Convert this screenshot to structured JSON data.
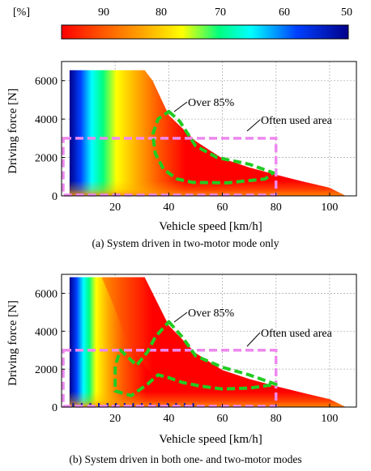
{
  "colorbar": {
    "unit_label": "[%]",
    "ticks": [
      "90",
      "80",
      "70",
      "60",
      "50"
    ],
    "range": [
      50,
      97
    ],
    "colors": [
      "#ff0000",
      "#ffb000",
      "#ffff00",
      "#00ff80",
      "#00ffff",
      "#0040ff",
      "#00008b"
    ]
  },
  "chart_data": [
    {
      "type": "heatmap",
      "caption": "(a) System driven in two-motor mode only",
      "xlabel": "Vehicle speed  [km/h]",
      "ylabel": "Driving force [N]",
      "xlim": [
        0,
        110
      ],
      "ylim": [
        0,
        7000
      ],
      "xticks": [
        "20",
        "40",
        "60",
        "80",
        "100"
      ],
      "yticks": [
        "0",
        "2000",
        "4000",
        "6000"
      ],
      "grid": true,
      "envelope": [
        [
          3,
          6550
        ],
        [
          31,
          6550
        ],
        [
          34,
          6000
        ],
        [
          40,
          4200
        ],
        [
          50,
          2850
        ],
        [
          60,
          1950
        ],
        [
          70,
          1480
        ],
        [
          80,
          1100
        ],
        [
          90,
          750
        ],
        [
          100,
          420
        ],
        [
          106,
          0
        ]
      ],
      "high_efficiency_region": {
        "label": "Over 85%",
        "outline": [
          [
            40,
            4400
          ],
          [
            44,
            3900
          ],
          [
            50,
            2600
          ],
          [
            58,
            2000
          ],
          [
            70,
            1650
          ],
          [
            79,
            1200
          ],
          [
            76,
            880
          ],
          [
            62,
            680
          ],
          [
            49,
            700
          ],
          [
            43,
            880
          ],
          [
            38,
            1400
          ],
          [
            35,
            2200
          ],
          [
            34,
            3200
          ],
          [
            36,
            4000
          ]
        ]
      },
      "often_used_area": {
        "label": "Often used area",
        "x_range": [
          0,
          80
        ],
        "y_range": [
          0,
          3000
        ]
      }
    },
    {
      "type": "heatmap",
      "caption": "(b) System driven in both one- and two-motor modes",
      "xlabel": "Vehicle speed  [km/h]",
      "ylabel": "Driving force [N]",
      "xlim": [
        0,
        110
      ],
      "ylim": [
        0,
        7000
      ],
      "xticks": [
        "20",
        "40",
        "60",
        "80",
        "100"
      ],
      "yticks": [
        "0",
        "2000",
        "4000",
        "6000"
      ],
      "grid": true,
      "envelope_one_motor": [
        [
          3,
          6850
        ],
        [
          15,
          6850
        ],
        [
          19,
          5500
        ],
        [
          25,
          3300
        ],
        [
          32,
          2000
        ],
        [
          40,
          1100
        ],
        [
          50,
          300
        ],
        [
          55,
          0
        ]
      ],
      "envelope_two_motor": [
        [
          3,
          6850
        ],
        [
          31,
          6850
        ],
        [
          34,
          6000
        ],
        [
          40,
          4300
        ],
        [
          50,
          2850
        ],
        [
          60,
          1950
        ],
        [
          70,
          1480
        ],
        [
          80,
          1100
        ],
        [
          90,
          750
        ],
        [
          100,
          420
        ],
        [
          106,
          0
        ]
      ],
      "high_efficiency_region": {
        "label": "Over 85%",
        "outline": [
          [
            40,
            4500
          ],
          [
            45,
            3700
          ],
          [
            50,
            2700
          ],
          [
            60,
            2100
          ],
          [
            70,
            1700
          ],
          [
            80,
            1200
          ],
          [
            70,
            1000
          ],
          [
            60,
            950
          ],
          [
            52,
            1100
          ],
          [
            45,
            1300
          ],
          [
            40,
            1550
          ],
          [
            36,
            1700
          ],
          [
            32,
            1200
          ],
          [
            26,
            600
          ],
          [
            20,
            850
          ],
          [
            20,
            2200
          ],
          [
            22,
            3000
          ],
          [
            25,
            2600
          ],
          [
            28,
            2200
          ],
          [
            32,
            2900
          ],
          [
            35,
            3700
          ]
        ]
      },
      "often_used_area": {
        "label": "Often used area",
        "x_range": [
          0,
          80
        ],
        "y_range": [
          0,
          3000
        ]
      }
    }
  ]
}
